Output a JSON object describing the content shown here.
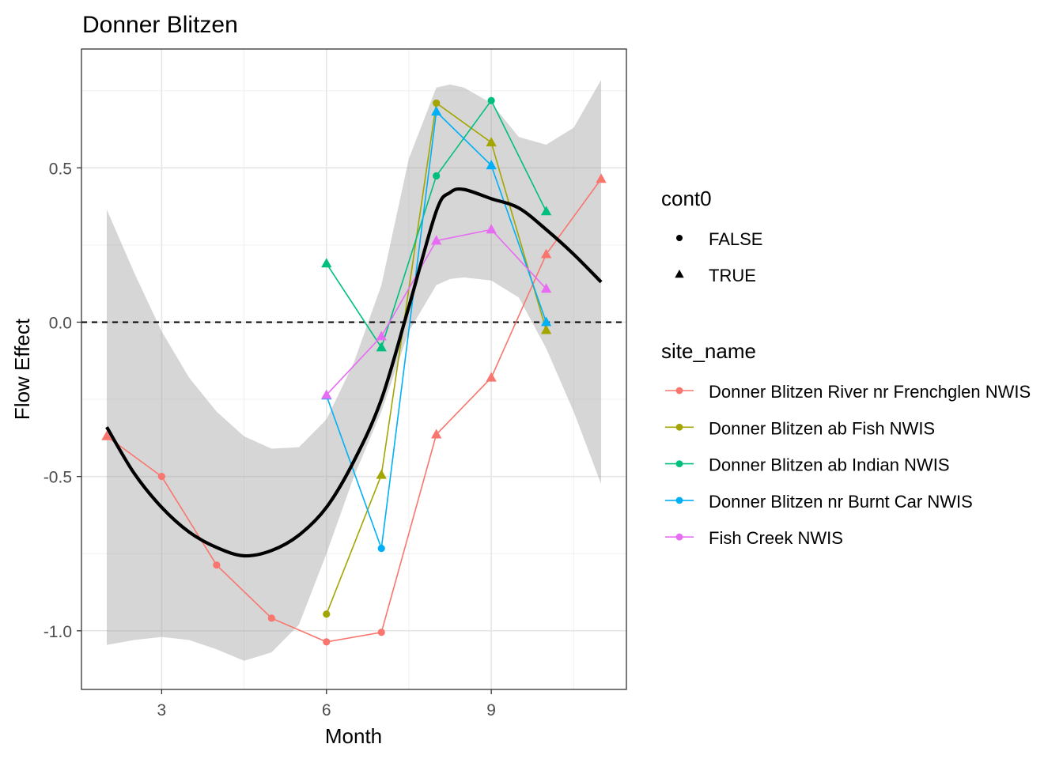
{
  "chart_data": {
    "type": "line",
    "title": "Donner Blitzen",
    "xlabel": "Month",
    "ylabel": "Flow Effect",
    "xlim": [
      1.54,
      11.46
    ],
    "ylim": [
      -1.19,
      0.885
    ],
    "xticks": [
      3,
      6,
      9
    ],
    "xtick_labels": [
      "3",
      "6",
      "9"
    ],
    "yticks": [
      0.5,
      0.0,
      -0.5,
      -1.0
    ],
    "ytick_labels": [
      "0.5",
      "0.0",
      "-0.5",
      "-1.0"
    ],
    "grid": true,
    "hline": 0,
    "legend_shape": {
      "title": "cont0",
      "entries": [
        {
          "label": "FALSE",
          "shape": "circle"
        },
        {
          "label": "TRUE",
          "shape": "triangle"
        }
      ]
    },
    "legend_color": {
      "title": "site_name",
      "placement": "right"
    },
    "series": [
      {
        "name": "Donner Blitzen River nr Frenchglen NWIS",
        "color": "#F8766D",
        "x": [
          2,
          3,
          4,
          5,
          6,
          7,
          8,
          9,
          10,
          11
        ],
        "y": [
          -0.37,
          -0.5,
          -0.787,
          -0.959,
          -1.036,
          -1.005,
          -0.364,
          -0.18,
          0.22,
          0.464
        ],
        "cont0": [
          true,
          false,
          false,
          false,
          false,
          false,
          true,
          true,
          true,
          true
        ]
      },
      {
        "name": "Donner Blitzen ab Fish NWIS",
        "color": "#A3A500",
        "x": [
          6,
          7,
          8,
          9,
          10
        ],
        "y": [
          -0.946,
          -0.495,
          0.71,
          0.582,
          -0.026
        ],
        "cont0": [
          false,
          true,
          false,
          true,
          true
        ]
      },
      {
        "name": "Donner Blitzen ab Indian NWIS",
        "color": "#00BF7D",
        "x": [
          6,
          7,
          8,
          9,
          10
        ],
        "y": [
          0.19,
          -0.082,
          0.474,
          0.718,
          0.359
        ],
        "cont0": [
          true,
          true,
          false,
          false,
          true
        ]
      },
      {
        "name": "Donner Blitzen nr Burnt Car NWIS",
        "color": "#00B0F6",
        "x": [
          6,
          7,
          8,
          9,
          10
        ],
        "y": [
          -0.238,
          -0.733,
          0.682,
          0.508,
          0.0
        ],
        "cont0": [
          true,
          false,
          true,
          true,
          true
        ]
      },
      {
        "name": "Fish Creek NWIS",
        "color": "#E76BF3",
        "x": [
          6,
          7,
          8,
          9,
          10
        ],
        "y": [
          -0.236,
          -0.046,
          0.264,
          0.3,
          0.108
        ],
        "cont0": [
          true,
          true,
          true,
          true,
          true
        ]
      }
    ],
    "smooth": {
      "color": "#000000",
      "x": [
        2,
        2.5,
        3,
        3.5,
        4,
        4.5,
        5,
        5.5,
        6,
        6.5,
        7,
        7.5,
        8,
        8.25,
        8.5,
        9,
        9.5,
        10,
        10.5,
        11
      ],
      "y": [
        -0.34,
        -0.49,
        -0.6,
        -0.68,
        -0.73,
        -0.757,
        -0.74,
        -0.69,
        -0.6,
        -0.45,
        -0.25,
        0.05,
        0.36,
        0.42,
        0.43,
        0.4,
        0.37,
        0.3,
        0.22,
        0.13
      ],
      "upper": [
        0.365,
        0.16,
        -0.03,
        -0.18,
        -0.29,
        -0.37,
        -0.41,
        -0.405,
        -0.315,
        -0.13,
        0.12,
        0.53,
        0.76,
        0.77,
        0.76,
        0.71,
        0.6,
        0.575,
        0.63,
        0.785
      ],
      "lower": [
        -1.046,
        -1.03,
        -1.02,
        -1.03,
        -1.06,
        -1.097,
        -1.07,
        -0.98,
        -0.75,
        -0.5,
        -0.29,
        -0.03,
        0.12,
        0.14,
        0.145,
        0.135,
        0.08,
        -0.085,
        -0.29,
        -0.525
      ]
    }
  }
}
